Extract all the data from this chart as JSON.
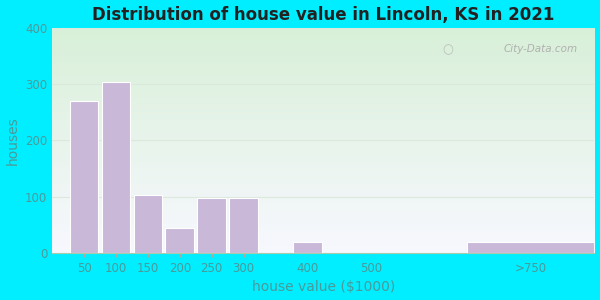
{
  "title": "Distribution of house value in Lincoln, KS in 2021",
  "xlabel": "house value ($1000)",
  "ylabel": "houses",
  "bar_labels": [
    "50",
    "100",
    "150",
    "200",
    "250",
    "300",
    "400",
    "500",
    ">750"
  ],
  "bar_values": [
    270,
    303,
    103,
    45,
    97,
    97,
    20,
    0,
    20
  ],
  "x_positions": [
    50,
    100,
    150,
    200,
    250,
    300,
    400,
    500,
    750
  ],
  "bar_color": "#c9b8d8",
  "bg_outer": "#00eeff",
  "bg_inner_topleft": "#d8f0d8",
  "bg_inner_bottomright": "#f8f8ff",
  "grid_color": "#dde8dd",
  "title_fontsize": 12,
  "title_color": "#222222",
  "axis_label_color": "#4a9a9a",
  "tick_color": "#4a9a9a",
  "axis_fontsize": 10,
  "tick_fontsize": 8.5,
  "ylim": [
    0,
    400
  ],
  "yticks": [
    0,
    100,
    200,
    300,
    400
  ],
  "watermark": "City-Data.com"
}
